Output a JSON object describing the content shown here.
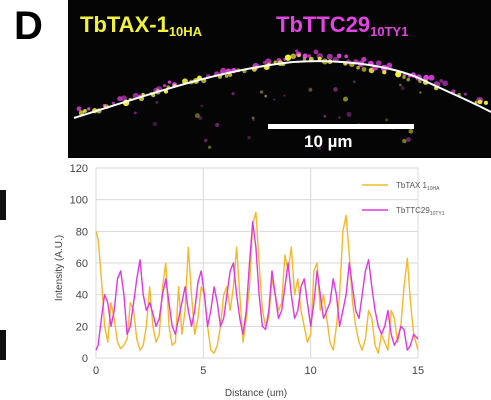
{
  "panel": {
    "letter": "D"
  },
  "micrograph": {
    "label_a": "TbTAX-1",
    "label_a_sub": "10HA",
    "label_b": "TbTTC29",
    "label_b_sub": "10TY1",
    "scale_label": "10 µm",
    "colors": {
      "channel_a": "#f2f23a",
      "channel_b": "#e344e3",
      "background": "#050505"
    }
  },
  "chart_data": {
    "type": "line",
    "xlabel": "Distance (um)",
    "ylabel": "Intensity (A.U.)",
    "xlim": [
      0,
      15
    ],
    "ylim": [
      0,
      120
    ],
    "xticks": [
      "0",
      "5",
      "10",
      "15"
    ],
    "yticks": [
      "0",
      "20",
      "40",
      "60",
      "80",
      "100",
      "120"
    ],
    "grid": true,
    "legend_position": "top-right",
    "series": [
      {
        "name": "TbTAX 1",
        "name_sub": "10HA",
        "color": "#f5b82a",
        "x": [
          0,
          0.1,
          0.25,
          0.4,
          0.55,
          0.7,
          0.85,
          1.0,
          1.15,
          1.3,
          1.45,
          1.6,
          1.75,
          1.9,
          2.05,
          2.2,
          2.35,
          2.5,
          2.65,
          2.8,
          2.95,
          3.1,
          3.25,
          3.4,
          3.55,
          3.7,
          3.85,
          4.0,
          4.15,
          4.3,
          4.45,
          4.6,
          4.75,
          4.9,
          5.05,
          5.2,
          5.35,
          5.5,
          5.65,
          5.8,
          5.95,
          6.1,
          6.25,
          6.4,
          6.55,
          6.7,
          6.85,
          7.0,
          7.15,
          7.3,
          7.45,
          7.6,
          7.75,
          7.9,
          8.05,
          8.2,
          8.35,
          8.5,
          8.65,
          8.8,
          8.95,
          9.1,
          9.25,
          9.4,
          9.55,
          9.7,
          9.85,
          10.0,
          10.15,
          10.3,
          10.45,
          10.6,
          10.75,
          10.9,
          11.05,
          11.2,
          11.35,
          11.5,
          11.65,
          11.8,
          11.95,
          12.1,
          12.25,
          12.4,
          12.55,
          12.7,
          12.85,
          13.0,
          13.15,
          13.3,
          13.45,
          13.6,
          13.75,
          13.9,
          14.05,
          14.2,
          14.35,
          14.5,
          14.65,
          14.8,
          15.0
        ],
        "y": [
          80,
          75,
          50,
          20,
          10,
          35,
          25,
          10,
          6,
          8,
          12,
          35,
          30,
          12,
          5,
          8,
          20,
          45,
          20,
          10,
          15,
          45,
          60,
          20,
          8,
          10,
          45,
          15,
          30,
          70,
          40,
          15,
          25,
          45,
          40,
          20,
          5,
          3,
          8,
          20,
          40,
          45,
          30,
          45,
          70,
          40,
          10,
          25,
          45,
          85,
          92,
          60,
          30,
          20,
          25,
          50,
          40,
          30,
          35,
          65,
          55,
          70,
          40,
          50,
          30,
          20,
          10,
          15,
          55,
          60,
          30,
          40,
          25,
          10,
          5,
          20,
          40,
          80,
          90,
          65,
          35,
          20,
          10,
          5,
          12,
          30,
          25,
          8,
          3,
          15,
          10,
          5,
          30,
          25,
          10,
          20,
          45,
          63,
          35,
          15,
          5
        ]
      },
      {
        "name": "TbTTC29",
        "name_sub": "10TY1",
        "color": "#e038e0",
        "x": [
          0,
          0.1,
          0.25,
          0.4,
          0.55,
          0.7,
          0.85,
          1.0,
          1.15,
          1.3,
          1.45,
          1.6,
          1.75,
          1.9,
          2.05,
          2.2,
          2.35,
          2.5,
          2.65,
          2.8,
          2.95,
          3.1,
          3.25,
          3.4,
          3.55,
          3.7,
          3.85,
          4.0,
          4.15,
          4.3,
          4.45,
          4.6,
          4.75,
          4.9,
          5.05,
          5.2,
          5.35,
          5.5,
          5.65,
          5.8,
          5.95,
          6.1,
          6.25,
          6.4,
          6.55,
          6.7,
          6.85,
          7.0,
          7.15,
          7.3,
          7.45,
          7.6,
          7.75,
          7.9,
          8.05,
          8.2,
          8.35,
          8.5,
          8.65,
          8.8,
          8.95,
          9.1,
          9.25,
          9.4,
          9.55,
          9.7,
          9.85,
          10.0,
          10.15,
          10.3,
          10.45,
          10.6,
          10.75,
          10.9,
          11.05,
          11.2,
          11.35,
          11.5,
          11.65,
          11.8,
          11.95,
          12.1,
          12.25,
          12.4,
          12.55,
          12.7,
          12.85,
          13.0,
          13.15,
          13.3,
          13.45,
          13.6,
          13.75,
          13.9,
          14.05,
          14.2,
          14.35,
          14.5,
          14.65,
          14.8,
          15.0
        ],
        "y": [
          5,
          8,
          25,
          40,
          35,
          20,
          30,
          50,
          55,
          40,
          15,
          20,
          35,
          50,
          62,
          40,
          30,
          35,
          28,
          20,
          25,
          40,
          50,
          35,
          20,
          15,
          25,
          35,
          45,
          30,
          20,
          30,
          48,
          55,
          40,
          20,
          30,
          45,
          35,
          20,
          25,
          40,
          55,
          60,
          40,
          25,
          15,
          30,
          60,
          86,
          70,
          40,
          20,
          18,
          30,
          55,
          40,
          25,
          30,
          45,
          60,
          40,
          25,
          30,
          45,
          50,
          35,
          20,
          35,
          55,
          40,
          25,
          30,
          35,
          50,
          40,
          20,
          30,
          40,
          60,
          45,
          30,
          25,
          40,
          55,
          62,
          45,
          30,
          20,
          15,
          20,
          30,
          15,
          8,
          12,
          20,
          18,
          5,
          8,
          15,
          12
        ]
      }
    ]
  }
}
